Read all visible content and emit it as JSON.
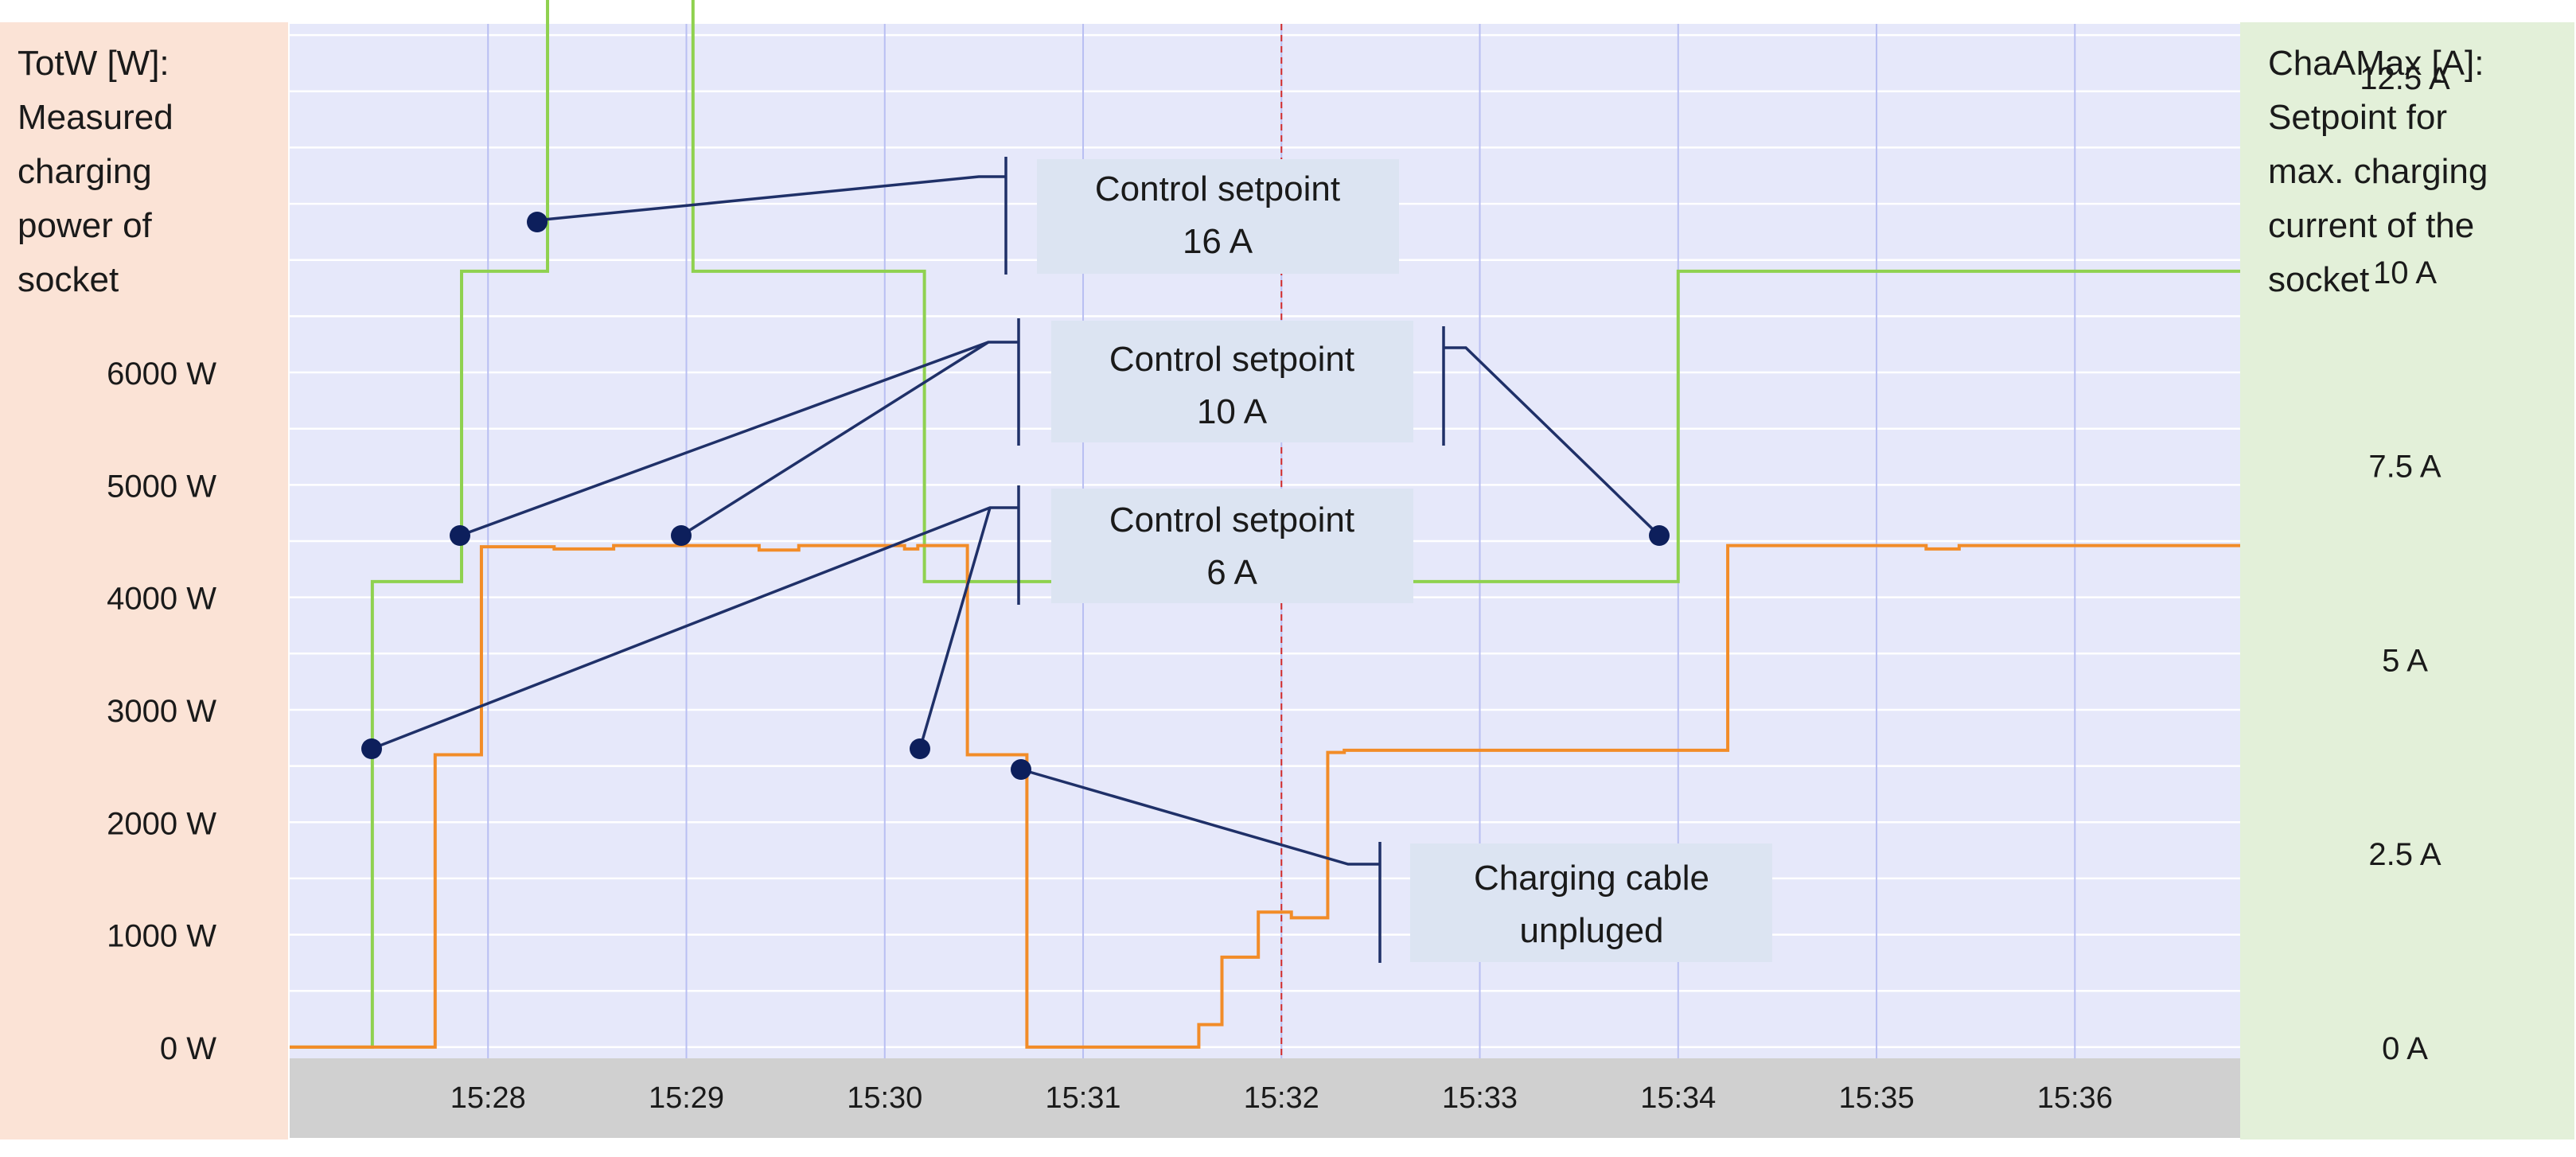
{
  "colors": {
    "left_panel": "#fbe3d6",
    "right_panel": "#e3f0d9",
    "plot_bg": "#e6e8fa",
    "x_axis_band": "#d0d0d0",
    "grid_h": "#ffffff",
    "grid_v": "#b9bff2",
    "power_line": "#f28c28",
    "setpoint_line": "#8fd14f",
    "marker": "#0d1f5c",
    "callout_line": "#1f3068",
    "label_box": "#dce4f2",
    "cursor": "#d22b2b"
  },
  "left_axis": {
    "title_lines": [
      "TotW [W]:",
      "Measured",
      "charging",
      "power of",
      "socket"
    ]
  },
  "right_axis": {
    "title_lines": [
      "ChaAMax [A]:",
      "Setpoint for",
      "max. charging",
      "current of the",
      "socket"
    ]
  },
  "annotations": {
    "ann_16a": {
      "line1": "Control setpoint",
      "line2": "16 A"
    },
    "ann_10a": {
      "line1": "Control setpoint",
      "line2": "10 A"
    },
    "ann_6a": {
      "line1": "Control setpoint",
      "line2": "6 A"
    },
    "ann_cable": {
      "line1": "Charging cable",
      "line2": "unpluged"
    }
  },
  "chart_data": {
    "type": "line",
    "x_unit": "time (hh:mm)",
    "xlim": [
      "15:27:00",
      "15:36:50"
    ],
    "x_ticks": [
      "15:28",
      "15:29",
      "15:30",
      "15:31",
      "15:32",
      "15:33",
      "15:34",
      "15:35",
      "15:36"
    ],
    "cursor_time": "15:32:00",
    "y_left": {
      "ticks": [
        0,
        1000,
        2000,
        3000,
        4000,
        5000,
        6000
      ],
      "tick_labels": [
        "0 W",
        "1000 W",
        "2000 W",
        "3000 W",
        "4000 W",
        "5000 W",
        "6000 W"
      ],
      "lim": [
        -100,
        9100
      ]
    },
    "y_right": {
      "ticks": [
        0,
        2.5,
        5,
        7.5,
        10,
        12.5
      ],
      "tick_labels": [
        "0 A",
        "2.5 A",
        "5 A",
        "7.5 A",
        "10 A",
        "12.5 A"
      ]
    },
    "series": [
      {
        "key": "totw",
        "axis": "left",
        "points": [
          [
            "15:27:00",
            0
          ],
          [
            "15:27:44",
            0
          ],
          [
            "15:27:44",
            2600
          ],
          [
            "15:27:58",
            2600
          ],
          [
            "15:27:58",
            4450
          ],
          [
            "15:28:20",
            4450
          ],
          [
            "15:28:20",
            4430
          ],
          [
            "15:28:38",
            4430
          ],
          [
            "15:28:38",
            4460
          ],
          [
            "15:29:22",
            4460
          ],
          [
            "15:29:22",
            4420
          ],
          [
            "15:29:34",
            4420
          ],
          [
            "15:29:34",
            4460
          ],
          [
            "15:30:06",
            4460
          ],
          [
            "15:30:06",
            4430
          ],
          [
            "15:30:10",
            4430
          ],
          [
            "15:30:10",
            4460
          ],
          [
            "15:30:25",
            4460
          ],
          [
            "15:30:25",
            2600
          ],
          [
            "15:30:43",
            2600
          ],
          [
            "15:30:43",
            0
          ],
          [
            "15:31:35",
            0
          ],
          [
            "15:31:35",
            200
          ],
          [
            "15:31:42",
            200
          ],
          [
            "15:31:42",
            800
          ],
          [
            "15:31:53",
            800
          ],
          [
            "15:31:53",
            1200
          ],
          [
            "15:32:03",
            1200
          ],
          [
            "15:32:03",
            1150
          ],
          [
            "15:32:14",
            1150
          ],
          [
            "15:32:14",
            2620
          ],
          [
            "15:32:19",
            2620
          ],
          [
            "15:32:19",
            2640
          ],
          [
            "15:34:15",
            2640
          ],
          [
            "15:34:15",
            4460
          ],
          [
            "15:35:15",
            4460
          ],
          [
            "15:35:15",
            4430
          ],
          [
            "15:35:25",
            4430
          ],
          [
            "15:35:25",
            4460
          ],
          [
            "15:36:50",
            4460
          ]
        ]
      },
      {
        "key": "chaamax",
        "axis": "right",
        "points": [
          [
            "15:27:00",
            0
          ],
          [
            "15:27:25",
            0
          ],
          [
            "15:27:25",
            6
          ],
          [
            "15:27:52",
            6
          ],
          [
            "15:27:52",
            10
          ],
          [
            "15:28:18",
            10
          ],
          [
            "15:28:18",
            16
          ],
          [
            "15:29:02",
            16
          ],
          [
            "15:29:02",
            10
          ],
          [
            "15:30:12",
            10
          ],
          [
            "15:30:12",
            6
          ],
          [
            "15:34:00",
            6
          ],
          [
            "15:34:00",
            10
          ],
          [
            "15:36:50",
            10
          ]
        ]
      }
    ],
    "annotations": [
      {
        "text": "Control setpoint 16 A",
        "points": [
          [
            "15:28:18",
            16
          ]
        ]
      },
      {
        "text": "Control setpoint 10 A",
        "points": [
          [
            "15:27:52",
            10
          ],
          [
            "15:29:02",
            10
          ],
          [
            "15:34:00",
            10
          ]
        ]
      },
      {
        "text": "Control setpoint 6 A",
        "points": [
          [
            "15:27:25",
            6
          ],
          [
            "15:30:12",
            6
          ]
        ]
      },
      {
        "text": "Charging cable unpluged",
        "points": [
          [
            "15:30:43",
            2600
          ]
        ]
      }
    ]
  }
}
